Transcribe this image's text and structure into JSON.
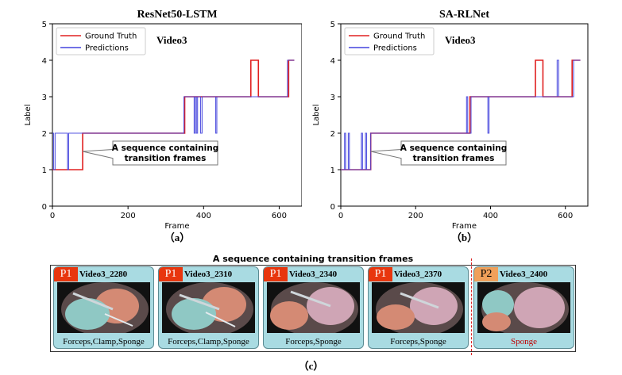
{
  "chart_data": [
    {
      "type": "line",
      "title": "ResNet50-LSTM",
      "panel_label": "（a）",
      "xlabel": "Frame",
      "ylabel": "Label",
      "xlim": [
        0,
        660
      ],
      "ylim": [
        0,
        5
      ],
      "xticks": [
        0,
        200,
        400,
        600
      ],
      "yticks": [
        0,
        1,
        2,
        3,
        4,
        5
      ],
      "legend": "top-left",
      "in_plot_text": "Video3",
      "annotation": "A sequence containing transition frames",
      "annotation_target": [
        80,
        1.5
      ],
      "series": [
        {
          "name": "Ground Truth",
          "color": "#e02020",
          "steps": [
            [
              0,
              1
            ],
            [
              80,
              2
            ],
            [
              350,
              3
            ],
            [
              525,
              4
            ],
            [
              545,
              3
            ],
            [
              625,
              4
            ],
            [
              640,
              4
            ]
          ]
        },
        {
          "name": "Predictions",
          "color": "#4444dd",
          "steps": [
            [
              0,
              2
            ],
            [
              3,
              1
            ],
            [
              7,
              2
            ],
            [
              40,
              1
            ],
            [
              43,
              2
            ],
            [
              348,
              3
            ],
            [
              375,
              2
            ],
            [
              378,
              3
            ],
            [
              381,
              2
            ],
            [
              384,
              3
            ],
            [
              392,
              2
            ],
            [
              396,
              3
            ],
            [
              432,
              2
            ],
            [
              435,
              3
            ],
            [
              622,
              4
            ],
            [
              640,
              4
            ]
          ]
        }
      ]
    },
    {
      "type": "line",
      "title": "SA-RLNet",
      "panel_label": "（b）",
      "xlabel": "Frame",
      "ylabel": "Label",
      "xlim": [
        0,
        660
      ],
      "ylim": [
        0,
        5
      ],
      "xticks": [
        0,
        200,
        400,
        600
      ],
      "yticks": [
        0,
        1,
        2,
        3,
        4,
        5
      ],
      "legend": "top-left",
      "in_plot_text": "Video3",
      "annotation": "A sequence containing transition frames",
      "annotation_target": [
        80,
        1.5
      ],
      "series": [
        {
          "name": "Ground Truth",
          "color": "#e02020",
          "steps": [
            [
              0,
              1
            ],
            [
              80,
              2
            ],
            [
              345,
              3
            ],
            [
              520,
              4
            ],
            [
              540,
              3
            ],
            [
              618,
              4
            ],
            [
              640,
              4
            ]
          ]
        },
        {
          "name": "Predictions",
          "color": "#4444dd",
          "steps": [
            [
              0,
              1
            ],
            [
              10,
              2
            ],
            [
              13,
              1
            ],
            [
              20,
              2
            ],
            [
              23,
              1
            ],
            [
              55,
              2
            ],
            [
              58,
              1
            ],
            [
              66,
              2
            ],
            [
              69,
              1
            ],
            [
              80,
              2
            ],
            [
              336,
              3
            ],
            [
              339,
              2
            ],
            [
              348,
              3
            ],
            [
              393,
              2
            ],
            [
              396,
              3
            ],
            [
              578,
              4
            ],
            [
              582,
              3
            ],
            [
              622,
              4
            ],
            [
              640,
              4
            ]
          ]
        }
      ]
    }
  ],
  "strip": {
    "title": "A sequence containing transition frames",
    "frames": [
      {
        "phase": "P1",
        "id": "Video3_2280",
        "instruments": "Forceps,Clamp,Sponge"
      },
      {
        "phase": "P1",
        "id": "Video3_2310",
        "instruments": "Forceps,Clamp,Sponge"
      },
      {
        "phase": "P1",
        "id": "Video3_2340",
        "instruments": "Forceps,Sponge"
      },
      {
        "phase": "P1",
        "id": "Video3_2370",
        "instruments": "Forceps,Sponge"
      },
      {
        "phase": "P2",
        "id": "Video3_2400",
        "instruments": "Sponge"
      }
    ],
    "label": "（c）"
  },
  "colors": {
    "gt": "#e02020",
    "pred": "#4444dd",
    "p1": "#e8360e",
    "p2": "#f0a05a",
    "strip_bg": "#a9dbe2"
  }
}
